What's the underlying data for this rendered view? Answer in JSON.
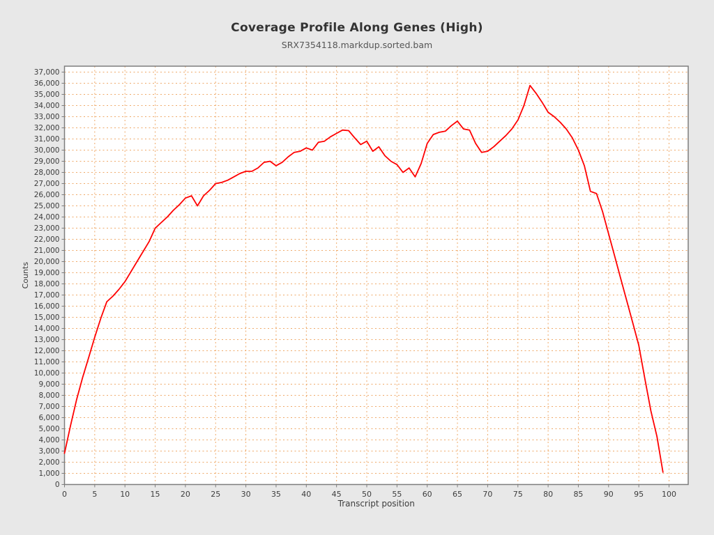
{
  "header": {
    "title": "Coverage Profile Along Genes (High)",
    "subtitle": "SRX7354118.markdup.sorted.bam"
  },
  "axes": {
    "x_label": "Transcript position",
    "y_label": "Counts",
    "x_tick_labels": [
      "0",
      "5",
      "10",
      "15",
      "20",
      "25",
      "30",
      "35",
      "40",
      "45",
      "50",
      "55",
      "60",
      "65",
      "70",
      "75",
      "80",
      "85",
      "90",
      "95",
      "100"
    ],
    "y_tick_min": 0,
    "y_tick_max": 37000,
    "y_tick_step": 1000
  },
  "chart_data": {
    "type": "line",
    "title": "Coverage Profile Along Genes (High)",
    "subtitle": "SRX7354118.markdup.sorted.bam",
    "xlabel": "Transcript position",
    "ylabel": "Counts",
    "xlim": [
      0,
      103.2
    ],
    "ylim": [
      0,
      37550
    ],
    "x_ticks": [
      0,
      5,
      10,
      15,
      20,
      25,
      30,
      35,
      40,
      45,
      50,
      55,
      60,
      65,
      70,
      75,
      80,
      85,
      90,
      95,
      100
    ],
    "y_ticks_every": 1000,
    "grid": "dotted, both axes",
    "legend_position": "none",
    "series": [
      {
        "name": "SRX7354118.markdup.sorted.bam",
        "color": "#ff0000",
        "x_start": 0,
        "x_step": 1,
        "values": [
          2800,
          5300,
          7600,
          9600,
          11400,
          13200,
          14900,
          16400,
          16900,
          17500,
          18200,
          19100,
          20000,
          20900,
          21800,
          23000,
          23500,
          24000,
          24600,
          25100,
          25700,
          25900,
          25000,
          25900,
          26400,
          27000,
          27100,
          27300,
          27600,
          27900,
          28100,
          28100,
          28400,
          28900,
          29000,
          28600,
          28900,
          29400,
          29800,
          29900,
          30200,
          30000,
          30700,
          30800,
          31200,
          31500,
          31800,
          31750,
          31100,
          30500,
          30800,
          29900,
          30300,
          29500,
          29000,
          28700,
          28000,
          28400,
          27600,
          28800,
          30600,
          31400,
          31600,
          31700,
          32200,
          32600,
          31900,
          31800,
          30600,
          29800,
          29900,
          30300,
          30800,
          31300,
          31900,
          32700,
          34000,
          35800,
          35100,
          34300,
          33400,
          33000,
          32500,
          31900,
          31100,
          30000,
          28600,
          26300,
          26100,
          24500,
          22500,
          20500,
          18500,
          16500,
          14500,
          12500,
          9500,
          6600,
          4300,
          1100
        ]
      }
    ]
  },
  "style": {
    "outer_bg": "#e8e8e8",
    "plot_bg": "#ffffff",
    "frame_color": "#7d7d7d",
    "grid_color": "#efa968",
    "tick_color": "#7d7d7d",
    "text_color": "#3c3c3c",
    "title_color": "#333333",
    "subtitle_color": "#555555",
    "line_color": "#ff0000"
  }
}
